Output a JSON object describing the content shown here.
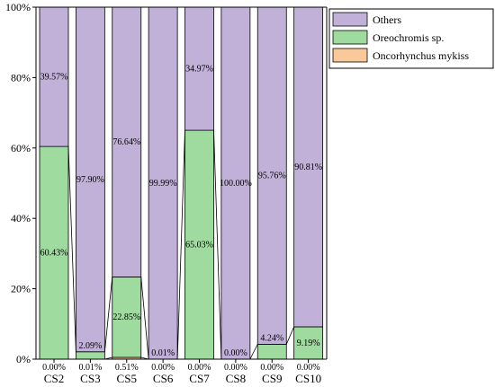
{
  "chart_data": {
    "type": "bar",
    "stacked": true,
    "normalized": true,
    "categories": [
      "CS2",
      "CS3",
      "CS5",
      "CS6",
      "CS7",
      "CS8",
      "CS9",
      "CS10"
    ],
    "series": [
      {
        "name": "Oncorhynchus mykiss",
        "color": "#F9C99A",
        "values": [
          0.0,
          0.01,
          0.51,
          0.0,
          0.0,
          0.0,
          0.0,
          0.0
        ],
        "labels": [
          "0.00%",
          "0.01%",
          "0.51%",
          "0.00%",
          "0.00%",
          "0.00%",
          "0.00%",
          "0.00%"
        ]
      },
      {
        "name": "Oreochromis sp.",
        "color": "#9FDA9E",
        "values": [
          60.43,
          2.09,
          22.85,
          0.01,
          65.03,
          0.0,
          4.24,
          9.19
        ],
        "labels": [
          "60.43%",
          "2.09%",
          "22.85%",
          "0.01%",
          "65.03%",
          "0.00%",
          "4.24%",
          "9.19%"
        ]
      },
      {
        "name": "Others",
        "color": "#C1B1D9",
        "values": [
          39.57,
          97.9,
          76.64,
          99.99,
          34.97,
          100.0,
          95.76,
          90.81
        ],
        "labels": [
          "39.57%",
          "97.90%",
          "76.64%",
          "99.99%",
          "34.97%",
          "100.00%",
          "95.76%",
          "90.81%"
        ]
      }
    ],
    "legend_order": [
      "Others",
      "Oreochromis sp.",
      "Oncorhynchus mykiss"
    ],
    "yticks": [
      "0%",
      "20%",
      "40%",
      "60%",
      "80%",
      "100%"
    ],
    "ylim": [
      0,
      100
    ],
    "legend_position": "top-right",
    "connector_lines": true
  }
}
